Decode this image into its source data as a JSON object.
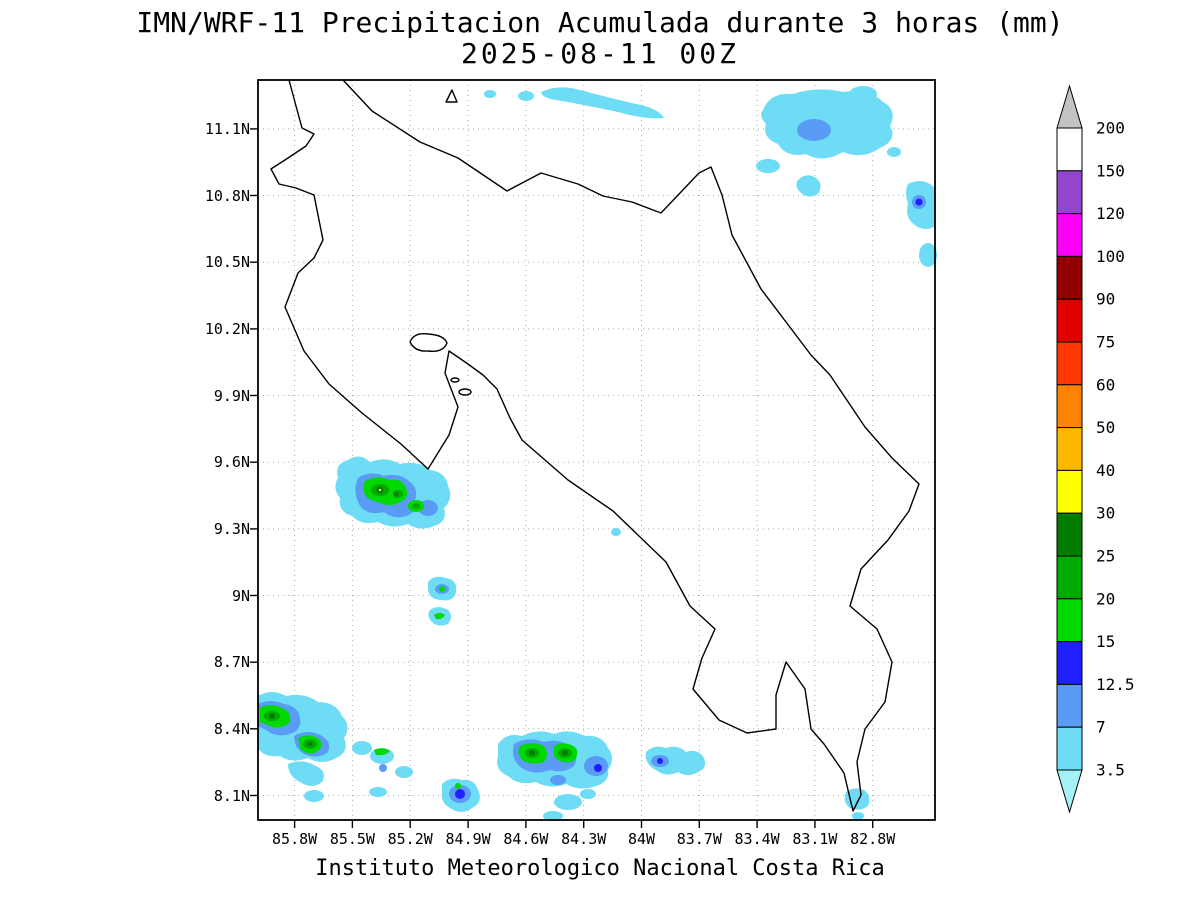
{
  "header": {
    "title_line1": "IMN/WRF-11 Precipitacion Acumulada durante 3 horas (mm)",
    "title_line2": "2025-08-11 00Z"
  },
  "footer": {
    "caption": "Instituto Meteorologico Nacional Costa Rica"
  },
  "map": {
    "x_ticks": [
      {
        "label": "85.8W",
        "pos": 36.6
      },
      {
        "label": "85.5W",
        "pos": 94.4
      },
      {
        "label": "85.2W",
        "pos": 152.2
      },
      {
        "label": "84.9W",
        "pos": 210.1
      },
      {
        "label": "84.6W",
        "pos": 267.9
      },
      {
        "label": "84.3W",
        "pos": 325.7
      },
      {
        "label": "84W",
        "pos": 383.5
      },
      {
        "label": "83.7W",
        "pos": 441.3
      },
      {
        "label": "83.4W",
        "pos": 499.1
      },
      {
        "label": "83.1W",
        "pos": 556.9
      },
      {
        "label": "82.8W",
        "pos": 614.7
      }
    ],
    "y_ticks": [
      {
        "label": "11.1N",
        "pos": 48.9
      },
      {
        "label": "10.8N",
        "pos": 115.5
      },
      {
        "label": "10.5N",
        "pos": 182.2
      },
      {
        "label": "10.2N",
        "pos": 248.9
      },
      {
        "label": "9.9N",
        "pos": 315.5
      },
      {
        "label": "9.6N",
        "pos": 382.2
      },
      {
        "label": "9.3N",
        "pos": 448.9
      },
      {
        "label": "9N",
        "pos": 515.5
      },
      {
        "label": "8.7N",
        "pos": 582.2
      },
      {
        "label": "8.4N",
        "pos": 648.8
      },
      {
        "label": "8.1N",
        "pos": 715.5
      }
    ]
  },
  "colorbar": {
    "boundary_labels": [
      "200",
      "150",
      "120",
      "100",
      "90",
      "75",
      "60",
      "50",
      "40",
      "30",
      "25",
      "20",
      "15",
      "12.5",
      "7",
      "3.5"
    ],
    "segment_colors": [
      "#ffffff",
      "#9146cc",
      "#fa00fa",
      "#8f0000",
      "#e00000",
      "#ff3800",
      "#ff8200",
      "#ffb800",
      "#ffff00",
      "#007d00",
      "#00aa00",
      "#00d800",
      "#2020ff",
      "#5a9bf5",
      "#6edcf5"
    ],
    "arrow_top_color": "#c3c3c3",
    "arrow_bottom_color": "#a5f1f7"
  },
  "chart_data": {
    "type": "filled-contour-map",
    "model": "IMN/WRF-11",
    "variable": "Precipitacion Acumulada durante 3 horas",
    "units": "mm",
    "valid_time": "2025-08-11 00Z",
    "lon_range_deg_w": [
      86.0,
      82.5
    ],
    "lat_range_deg_n": [
      8.0,
      11.3
    ],
    "contour_levels_mm": [
      3.5,
      7,
      12.5,
      15,
      20,
      25,
      30,
      40,
      50,
      60,
      75,
      90,
      100,
      120,
      150,
      200
    ],
    "precipitation_cells": [
      {
        "area": "streaks along northern border",
        "approx_lon_w": 84.3,
        "approx_lat_n": 11.2,
        "max_band_mm": "3.5-7"
      },
      {
        "area": "Caribbean offshore northeast cluster",
        "approx_lon_w": 83.1,
        "approx_lat_n": 11.0,
        "max_band_mm": "7-12.5"
      },
      {
        "area": "Caribbean east edge spot",
        "approx_lon_w": 82.55,
        "approx_lat_n": 10.75,
        "max_band_mm": "12.5-15"
      },
      {
        "area": "Pacific off Nicoya Peninsula",
        "approx_lon_w": 85.35,
        "approx_lat_n": 9.45,
        "max_band_mm": "25-30"
      },
      {
        "area": "Pacific central coast spots",
        "approx_lon_w": 84.85,
        "approx_lat_n": 9.0,
        "max_band_mm": "15-20"
      },
      {
        "area": "far southwest Pacific cluster",
        "approx_lon_w": 85.75,
        "approx_lat_n": 8.42,
        "max_band_mm": "25-30"
      },
      {
        "area": "south-central Pacific cluster",
        "approx_lon_w": 84.5,
        "approx_lat_n": 8.25,
        "max_band_mm": "25-30"
      },
      {
        "area": "southern Pacific blue core",
        "approx_lon_w": 84.95,
        "approx_lat_n": 8.1,
        "max_band_mm": "12.5-15"
      },
      {
        "area": "off Golfo Dulce",
        "approx_lon_w": 83.95,
        "approx_lat_n": 8.22,
        "max_band_mm": "12.5-15"
      },
      {
        "area": "off Punta Burica",
        "approx_lon_w": 82.95,
        "approx_lat_n": 8.08,
        "max_band_mm": "3.5-7"
      }
    ]
  }
}
